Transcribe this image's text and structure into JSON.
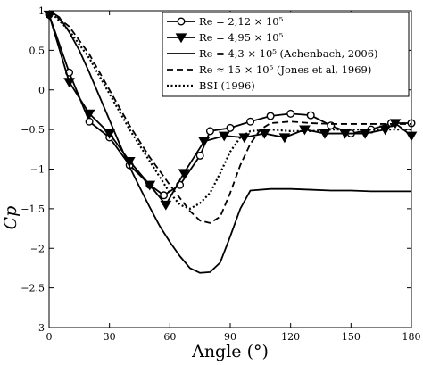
{
  "chart_data": {
    "type": "line",
    "xlabel": "Angle (°)",
    "ylabel": "Cp",
    "xlim": [
      0,
      180
    ],
    "ylim": [
      -3,
      1
    ],
    "xticks": [
      0,
      30,
      60,
      90,
      120,
      150,
      180
    ],
    "yticks": [
      1,
      0.5,
      0,
      -0.5,
      -1,
      -1.5,
      -2,
      -2.5,
      -3
    ],
    "xtick_labels": [
      "0",
      "30",
      "60",
      "90",
      "120",
      "150",
      "180"
    ],
    "ytick_labels": [
      "1",
      "0.5",
      "0",
      "−0.5",
      "−1",
      "−1.5",
      "−2",
      "−2.5",
      "−3"
    ],
    "grid": false,
    "legend_position": "top-right",
    "series": [
      {
        "name": "Re = 2,12 × 10⁵",
        "style": "circle-marker",
        "color": "#000000",
        "x": [
          0,
          10,
          20,
          30,
          40,
          50,
          57,
          65,
          75,
          80,
          90,
          100,
          110,
          120,
          130,
          140,
          150,
          160,
          170,
          180
        ],
        "y": [
          0.95,
          0.22,
          -0.4,
          -0.6,
          -0.95,
          -1.2,
          -1.33,
          -1.2,
          -0.83,
          -0.52,
          -0.48,
          -0.4,
          -0.33,
          -0.3,
          -0.32,
          -0.45,
          -0.55,
          -0.5,
          -0.42,
          -0.42
        ]
      },
      {
        "name": "Re = 4,95 × 10⁵",
        "style": "triangle-marker",
        "color": "#000000",
        "x": [
          0,
          10,
          20,
          30,
          40,
          50,
          58,
          67,
          77,
          87,
          97,
          107,
          117,
          127,
          137,
          147,
          157,
          167,
          172,
          180
        ],
        "y": [
          0.95,
          0.1,
          -0.3,
          -0.55,
          -0.9,
          -1.2,
          -1.45,
          -1.05,
          -0.65,
          -0.58,
          -0.6,
          -0.55,
          -0.6,
          -0.5,
          -0.55,
          -0.55,
          -0.55,
          -0.5,
          -0.42,
          -0.58
        ]
      },
      {
        "name": "Re = 4,3 × 10⁵ (Achenbach, 2006)",
        "style": "solid",
        "color": "#000000",
        "x": [
          0,
          5,
          10,
          15,
          20,
          25,
          30,
          35,
          40,
          45,
          50,
          55,
          60,
          65,
          70,
          75,
          80,
          85,
          90,
          95,
          100,
          110,
          120,
          130,
          140,
          150,
          160,
          170,
          180
        ],
        "y": [
          1,
          0.92,
          0.73,
          0.5,
          0.22,
          -0.08,
          -0.38,
          -0.68,
          -0.97,
          -1.23,
          -1.48,
          -1.72,
          -1.92,
          -2.1,
          -2.25,
          -2.31,
          -2.3,
          -2.18,
          -1.85,
          -1.5,
          -1.27,
          -1.25,
          -1.25,
          -1.26,
          -1.27,
          -1.27,
          -1.28,
          -1.28,
          -1.28
        ]
      },
      {
        "name": "Re ≈ 15 × 10⁵ (Jones et al, 1969)",
        "style": "dashed",
        "color": "#000000",
        "x": [
          0,
          10,
          20,
          30,
          40,
          50,
          60,
          70,
          75,
          80,
          85,
          90,
          95,
          100,
          105,
          110,
          120,
          130,
          140,
          150,
          160,
          170,
          180
        ],
        "y": [
          1,
          0.8,
          0.45,
          0.0,
          -0.45,
          -0.85,
          -1.2,
          -1.53,
          -1.65,
          -1.68,
          -1.6,
          -1.3,
          -0.95,
          -0.68,
          -0.5,
          -0.42,
          -0.4,
          -0.42,
          -0.43,
          -0.43,
          -0.43,
          -0.43,
          -0.43
        ]
      },
      {
        "name": "BSI (1996)",
        "style": "dotted",
        "color": "#000000",
        "x": [
          0,
          10,
          20,
          30,
          40,
          50,
          60,
          65,
          70,
          75,
          80,
          85,
          90,
          95,
          100,
          110,
          120,
          130,
          140,
          150,
          160,
          170,
          180
        ],
        "y": [
          1,
          0.75,
          0.4,
          -0.05,
          -0.5,
          -0.9,
          -1.3,
          -1.45,
          -1.5,
          -1.43,
          -1.3,
          -1.05,
          -0.78,
          -0.6,
          -0.52,
          -0.5,
          -0.52,
          -0.52,
          -0.5,
          -0.5,
          -0.5,
          -0.5,
          -0.5
        ]
      }
    ]
  }
}
